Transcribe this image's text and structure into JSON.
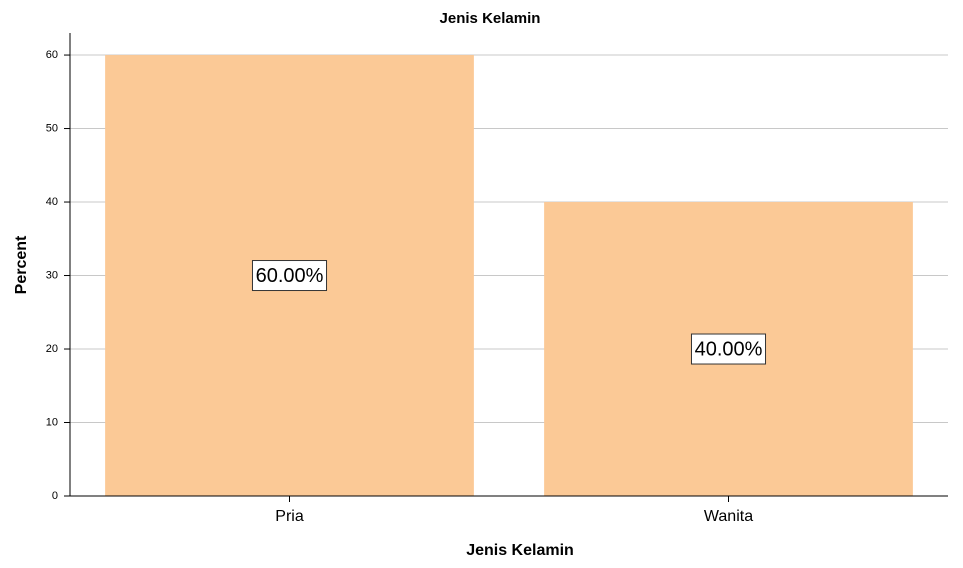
{
  "chart_data": {
    "type": "bar",
    "title": "Jenis Kelamin",
    "x_label": "Jenis Kelamin",
    "y_label": "Percent",
    "categories": [
      "Pria",
      "Wanita"
    ],
    "values": [
      60,
      40
    ],
    "value_labels": [
      "60.00%",
      "40.00%"
    ],
    "color": "#fbc996",
    "ylim": [
      0,
      63
    ],
    "yticks": [
      0,
      10,
      20,
      30,
      40,
      50,
      60
    ],
    "grid": true
  }
}
